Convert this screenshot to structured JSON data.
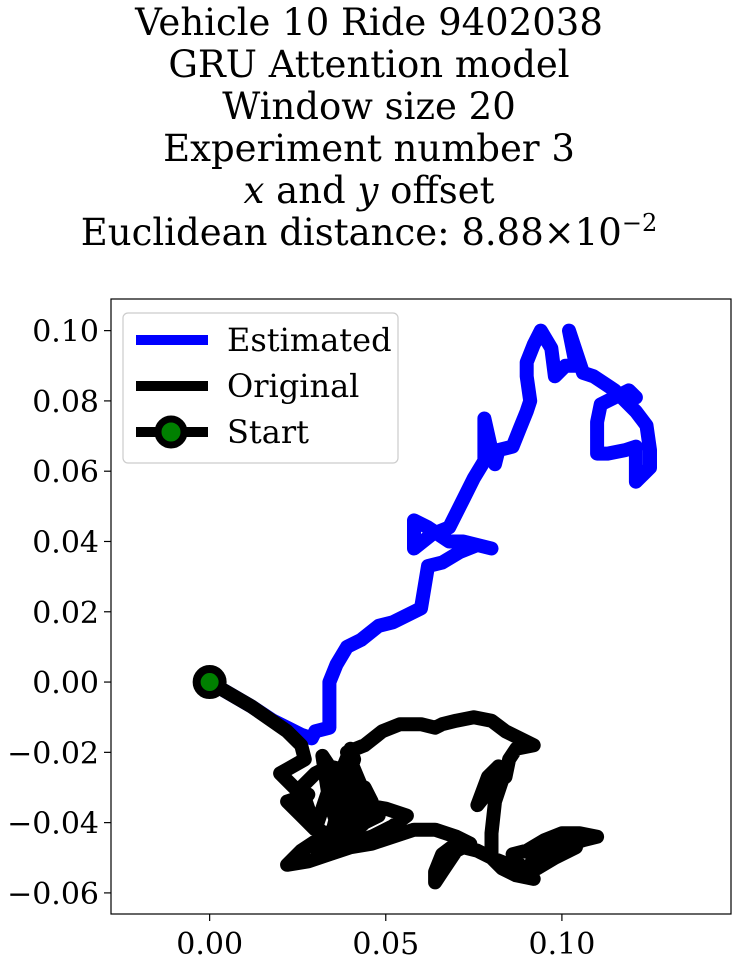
{
  "chart_data": {
    "type": "line",
    "title_lines": [
      "Vehicle 10 Ride 9402038",
      "GRU Attention model",
      "Window size 20",
      "Experiment number 3",
      "x and y offset",
      "Euclidean distance: 8.88×10−2"
    ],
    "xlim": [
      -0.028,
      0.148
    ],
    "ylim": [
      -0.066,
      0.109
    ],
    "x_ticks": [
      0.0,
      0.05,
      0.1
    ],
    "x_tick_labels": [
      "0.00",
      "0.05",
      "0.10"
    ],
    "y_ticks": [
      0.1,
      0.08,
      0.06,
      0.04,
      0.02,
      0.0,
      -0.02,
      -0.04,
      -0.06
    ],
    "y_tick_labels": [
      "0.10",
      "0.08",
      "0.06",
      "0.04",
      "0.02",
      "0.00",
      "−0.02",
      "−0.04",
      "−0.06"
    ],
    "grid": false,
    "legend_position": "top-left",
    "legend": [
      "Estimated",
      "Original",
      "Start"
    ],
    "series": [
      {
        "name": "Estimated",
        "color": "#0000ff",
        "points": [
          [
            0.0,
            0.0
          ],
          [
            0.012,
            -0.007
          ],
          [
            0.018,
            -0.011
          ],
          [
            0.022,
            -0.013
          ],
          [
            0.026,
            -0.015
          ],
          [
            0.029,
            -0.016
          ],
          [
            0.03,
            -0.014
          ],
          [
            0.034,
            -0.013
          ],
          [
            0.034,
            -0.004
          ],
          [
            0.034,
            0.0
          ],
          [
            0.036,
            0.005
          ],
          [
            0.039,
            0.01
          ],
          [
            0.043,
            0.012
          ],
          [
            0.048,
            0.016
          ],
          [
            0.052,
            0.017
          ],
          [
            0.056,
            0.019
          ],
          [
            0.06,
            0.021
          ],
          [
            0.062,
            0.033
          ],
          [
            0.066,
            0.034
          ],
          [
            0.071,
            0.037
          ],
          [
            0.076,
            0.039
          ],
          [
            0.08,
            0.038
          ],
          [
            0.072,
            0.04
          ],
          [
            0.068,
            0.04
          ],
          [
            0.062,
            0.044
          ],
          [
            0.058,
            0.046
          ],
          [
            0.058,
            0.038
          ],
          [
            0.063,
            0.042
          ],
          [
            0.068,
            0.044
          ],
          [
            0.072,
            0.052
          ],
          [
            0.075,
            0.058
          ],
          [
            0.078,
            0.063
          ],
          [
            0.078,
            0.075
          ],
          [
            0.08,
            0.066
          ],
          [
            0.081,
            0.062
          ],
          [
            0.082,
            0.066
          ],
          [
            0.086,
            0.067
          ],
          [
            0.088,
            0.072
          ],
          [
            0.09,
            0.077
          ],
          [
            0.091,
            0.08
          ],
          [
            0.09,
            0.087
          ],
          [
            0.09,
            0.091
          ],
          [
            0.092,
            0.096
          ],
          [
            0.094,
            0.1
          ],
          [
            0.097,
            0.095
          ],
          [
            0.098,
            0.087
          ],
          [
            0.101,
            0.09
          ],
          [
            0.104,
            0.09
          ],
          [
            0.102,
            0.1
          ],
          [
            0.104,
            0.094
          ],
          [
            0.106,
            0.088
          ],
          [
            0.109,
            0.087
          ],
          [
            0.112,
            0.085
          ],
          [
            0.115,
            0.083
          ],
          [
            0.118,
            0.08
          ],
          [
            0.121,
            0.077
          ],
          [
            0.124,
            0.073
          ],
          [
            0.125,
            0.066
          ],
          [
            0.125,
            0.061
          ],
          [
            0.121,
            0.057
          ],
          [
            0.121,
            0.067
          ],
          [
            0.118,
            0.066
          ],
          [
            0.113,
            0.065
          ],
          [
            0.11,
            0.065
          ],
          [
            0.11,
            0.074
          ],
          [
            0.111,
            0.079
          ],
          [
            0.113,
            0.08
          ],
          [
            0.117,
            0.082
          ],
          [
            0.119,
            0.083
          ],
          [
            0.121,
            0.081
          ]
        ]
      },
      {
        "name": "Original",
        "color": "#000000",
        "points": [
          [
            0.0,
            0.0
          ],
          [
            0.012,
            -0.007
          ],
          [
            0.022,
            -0.014
          ],
          [
            0.026,
            -0.018
          ],
          [
            0.027,
            -0.022
          ],
          [
            0.02,
            -0.026
          ],
          [
            0.024,
            -0.03
          ],
          [
            0.028,
            -0.032
          ],
          [
            0.022,
            -0.034
          ],
          [
            0.026,
            -0.038
          ],
          [
            0.03,
            -0.042
          ],
          [
            0.034,
            -0.03
          ],
          [
            0.038,
            -0.026
          ],
          [
            0.041,
            -0.032
          ],
          [
            0.036,
            -0.038
          ],
          [
            0.04,
            -0.044
          ],
          [
            0.044,
            -0.032
          ],
          [
            0.039,
            -0.02
          ],
          [
            0.044,
            -0.018
          ],
          [
            0.049,
            -0.014
          ],
          [
            0.054,
            -0.012
          ],
          [
            0.06,
            -0.012
          ],
          [
            0.064,
            -0.013
          ],
          [
            0.066,
            -0.012
          ],
          [
            0.07,
            -0.011
          ],
          [
            0.075,
            -0.01
          ],
          [
            0.08,
            -0.011
          ],
          [
            0.084,
            -0.014
          ],
          [
            0.09,
            -0.017
          ],
          [
            0.092,
            -0.018
          ],
          [
            0.087,
            -0.019
          ],
          [
            0.085,
            -0.022
          ],
          [
            0.084,
            -0.027
          ],
          [
            0.08,
            -0.03
          ],
          [
            0.076,
            -0.035
          ],
          [
            0.079,
            -0.027
          ],
          [
            0.082,
            -0.024
          ],
          [
            0.083,
            -0.028
          ],
          [
            0.081,
            -0.034
          ],
          [
            0.08,
            -0.043
          ],
          [
            0.08,
            -0.05
          ],
          [
            0.083,
            -0.053
          ],
          [
            0.087,
            -0.055
          ],
          [
            0.092,
            -0.056
          ],
          [
            0.088,
            -0.052
          ],
          [
            0.086,
            -0.049
          ],
          [
            0.09,
            -0.048
          ],
          [
            0.095,
            -0.045
          ],
          [
            0.1,
            -0.043
          ],
          [
            0.105,
            -0.043
          ],
          [
            0.11,
            -0.044
          ],
          [
            0.106,
            -0.045
          ],
          [
            0.1,
            -0.047
          ],
          [
            0.095,
            -0.05
          ],
          [
            0.091,
            -0.053
          ],
          [
            0.092,
            -0.049
          ],
          [
            0.096,
            -0.046
          ],
          [
            0.101,
            -0.045
          ],
          [
            0.104,
            -0.047
          ],
          [
            0.098,
            -0.05
          ],
          [
            0.093,
            -0.053
          ],
          [
            0.089,
            -0.054
          ],
          [
            0.085,
            -0.052
          ],
          [
            0.08,
            -0.05
          ],
          [
            0.076,
            -0.048
          ],
          [
            0.072,
            -0.047
          ],
          [
            0.07,
            -0.046
          ],
          [
            0.066,
            -0.049
          ],
          [
            0.064,
            -0.054
          ],
          [
            0.064,
            -0.057
          ],
          [
            0.066,
            -0.054
          ],
          [
            0.07,
            -0.048
          ],
          [
            0.074,
            -0.046
          ],
          [
            0.07,
            -0.044
          ],
          [
            0.064,
            -0.042
          ],
          [
            0.058,
            -0.042
          ],
          [
            0.052,
            -0.044
          ],
          [
            0.046,
            -0.046
          ],
          [
            0.04,
            -0.047
          ],
          [
            0.034,
            -0.049
          ],
          [
            0.028,
            -0.051
          ],
          [
            0.022,
            -0.052
          ],
          [
            0.026,
            -0.048
          ],
          [
            0.032,
            -0.044
          ],
          [
            0.038,
            -0.04
          ],
          [
            0.044,
            -0.037
          ],
          [
            0.048,
            -0.038
          ],
          [
            0.042,
            -0.041
          ],
          [
            0.036,
            -0.044
          ],
          [
            0.03,
            -0.047
          ],
          [
            0.034,
            -0.048
          ],
          [
            0.04,
            -0.046
          ],
          [
            0.046,
            -0.044
          ],
          [
            0.052,
            -0.041
          ],
          [
            0.056,
            -0.038
          ],
          [
            0.05,
            -0.036
          ],
          [
            0.044,
            -0.035
          ],
          [
            0.04,
            -0.033
          ],
          [
            0.036,
            -0.029
          ],
          [
            0.034,
            -0.024
          ],
          [
            0.032,
            -0.021
          ],
          [
            0.034,
            -0.034
          ],
          [
            0.036,
            -0.04
          ],
          [
            0.038,
            -0.046
          ],
          [
            0.04,
            -0.044
          ],
          [
            0.041,
            -0.038
          ],
          [
            0.039,
            -0.03
          ],
          [
            0.038,
            -0.024
          ],
          [
            0.04,
            -0.019
          ],
          [
            0.041,
            -0.022
          ],
          [
            0.039,
            -0.028
          ],
          [
            0.037,
            -0.033
          ],
          [
            0.036,
            -0.038
          ],
          [
            0.034,
            -0.046
          ],
          [
            0.036,
            -0.04
          ],
          [
            0.038,
            -0.034
          ],
          [
            0.04,
            -0.03
          ],
          [
            0.044,
            -0.03
          ],
          [
            0.046,
            -0.034
          ],
          [
            0.044,
            -0.04
          ],
          [
            0.04,
            -0.044
          ],
          [
            0.036,
            -0.046
          ],
          [
            0.03,
            -0.041
          ],
          [
            0.028,
            -0.036
          ],
          [
            0.026,
            -0.03
          ],
          [
            0.03,
            -0.026
          ],
          [
            0.034,
            -0.024
          ],
          [
            0.038,
            -0.025
          ]
        ]
      }
    ],
    "start_point": {
      "name": "Start",
      "x": 0.0,
      "y": 0.0,
      "edge_color": "#000000",
      "face_color": "#008000"
    }
  }
}
